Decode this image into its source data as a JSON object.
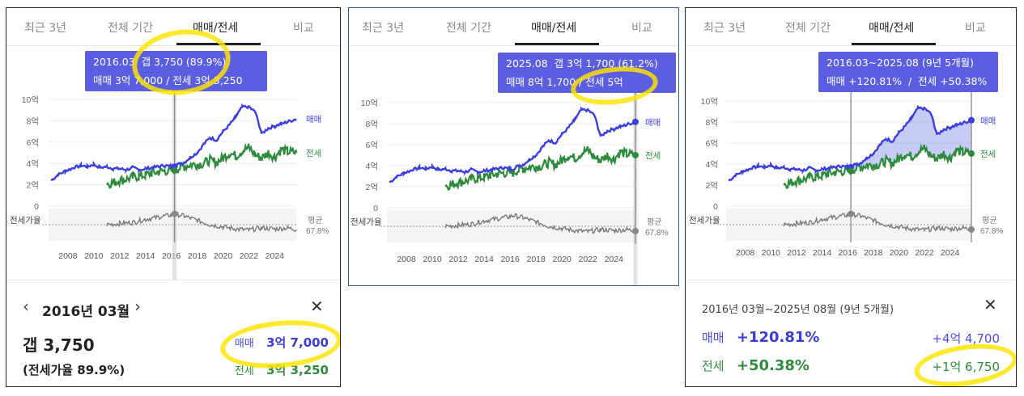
{
  "tabs": [
    "최근 3년",
    "전체 기간",
    "매매/전세",
    "비교"
  ],
  "active_tab": "매매/전세",
  "colors": {
    "sale": "#3b3ee0",
    "jeonse": "#2e8b3d",
    "ratio": "#7a7a7a",
    "tooltip": "#5b5ee0",
    "highlight": "#ffe400"
  },
  "chart": {
    "y_ticks": [
      "10억",
      "8억",
      "6억",
      "4억",
      "2억",
      "0"
    ],
    "x_ticks": [
      "2008",
      "2010",
      "2012",
      "2014",
      "2016",
      "2018",
      "2020",
      "2022",
      "2024"
    ],
    "sale_label": "매매",
    "jeonse_label": "전세",
    "ratio_label": "전세가율",
    "avg_label": "평균",
    "avg_value": "67.8%"
  },
  "panel1": {
    "tooltip_line1_a": "2016.03",
    "tooltip_line1_b": "갭 3,750",
    "tooltip_line1_c": "(89.9%)",
    "tooltip_line2": "매매 3억 7,000 / 전세 3억 3,250",
    "date_title": "2016년 03월",
    "gap_main": "갭 3,750",
    "gap_ratio": "(전세가율 89.9%)",
    "sale_label": "매매",
    "sale_value": "3억 7,000",
    "jeonse_label": "전세",
    "jeonse_value": "3억 3,250"
  },
  "panel2": {
    "tooltip_line1_a": "2025.08",
    "tooltip_line1_b": "갭 3억 1,700",
    "tooltip_line1_c": "(61.2%)",
    "tooltip_line2": "매매 8억 1,700 / 전세 5억"
  },
  "panel3": {
    "tooltip_line1": "2016.03~2025.08 (9년 5개월)",
    "tooltip_line2": "매매 +120.81%  /  전세 +50.38%",
    "period_title": "2016년 03월~2025년 08월 (9년 5개월)",
    "sale_label": "매매",
    "sale_pct": "+120.81%",
    "sale_diff": "+4억 4,700",
    "jeonse_label": "전세",
    "jeonse_pct": "+50.38%",
    "jeonse_diff": "+1억 6,750"
  },
  "chart_data": {
    "type": "line",
    "x_range": [
      2006.5,
      2025.67
    ],
    "ylim": [
      0,
      10
    ],
    "y_unit": "억",
    "series": [
      {
        "name": "매매",
        "x": [
          2006.7,
          2007.2,
          2007.8,
          2008.5,
          2009.0,
          2009.5,
          2010.0,
          2010.5,
          2011.0,
          2011.5,
          2012.0,
          2012.5,
          2013.0,
          2013.5,
          2014.0,
          2014.5,
          2015.0,
          2015.5,
          2016.0,
          2016.25,
          2016.5,
          2017.0,
          2017.5,
          2018.0,
          2018.5,
          2019.0,
          2019.5,
          2020.0,
          2020.5,
          2021.0,
          2021.5,
          2022.0,
          2022.5,
          2023.0,
          2023.5,
          2024.0,
          2024.5,
          2025.0,
          2025.67
        ],
        "y": [
          2.4,
          2.9,
          3.3,
          3.6,
          3.8,
          3.7,
          3.9,
          3.6,
          3.7,
          3.5,
          3.5,
          3.4,
          3.6,
          3.4,
          3.5,
          3.6,
          3.7,
          3.8,
          3.7,
          3.7,
          3.9,
          4.1,
          4.6,
          5.0,
          5.8,
          6.4,
          6.2,
          7.0,
          7.6,
          8.4,
          9.3,
          9.3,
          8.8,
          6.8,
          7.3,
          7.5,
          7.7,
          7.9,
          8.17
        ]
      },
      {
        "name": "전세",
        "x": [
          2011.0,
          2011.5,
          2012.0,
          2012.5,
          2013.0,
          2013.5,
          2014.0,
          2014.5,
          2015.0,
          2015.5,
          2016.0,
          2016.25,
          2016.5,
          2017.0,
          2017.5,
          2018.0,
          2018.5,
          2019.0,
          2019.5,
          2020.0,
          2020.5,
          2021.0,
          2021.5,
          2022.0,
          2022.5,
          2023.0,
          2023.5,
          2024.0,
          2024.5,
          2025.0,
          2025.67
        ],
        "y": [
          2.1,
          2.2,
          2.4,
          2.5,
          2.7,
          2.8,
          2.9,
          3.1,
          3.2,
          3.3,
          3.3,
          3.33,
          3.5,
          3.7,
          3.9,
          3.9,
          4.0,
          4.3,
          4.1,
          4.5,
          5.0,
          4.7,
          5.2,
          5.5,
          4.8,
          4.5,
          5.0,
          4.6,
          5.3,
          5.1,
          5.0
        ]
      },
      {
        "name": "전세가율",
        "x": [
          2011.0,
          2012.0,
          2013.0,
          2014.0,
          2015.0,
          2016.0,
          2016.25,
          2017.0,
          2018.0,
          2019.0,
          2020.0,
          2021.0,
          2022.0,
          2023.0,
          2024.0,
          2025.0,
          2025.67
        ],
        "y": [
          70,
          72,
          74,
          80,
          84,
          88,
          89.9,
          86,
          78,
          70,
          66,
          62,
          60,
          64,
          62,
          64,
          61.2
        ]
      }
    ],
    "ratio_average": 67.8,
    "markers": [
      {
        "panel": "1",
        "x": 2016.25
      },
      {
        "panel": "2",
        "x": 2025.67
      },
      {
        "panel": "3",
        "x_start": 2016.25,
        "x_end": 2025.67
      }
    ]
  }
}
